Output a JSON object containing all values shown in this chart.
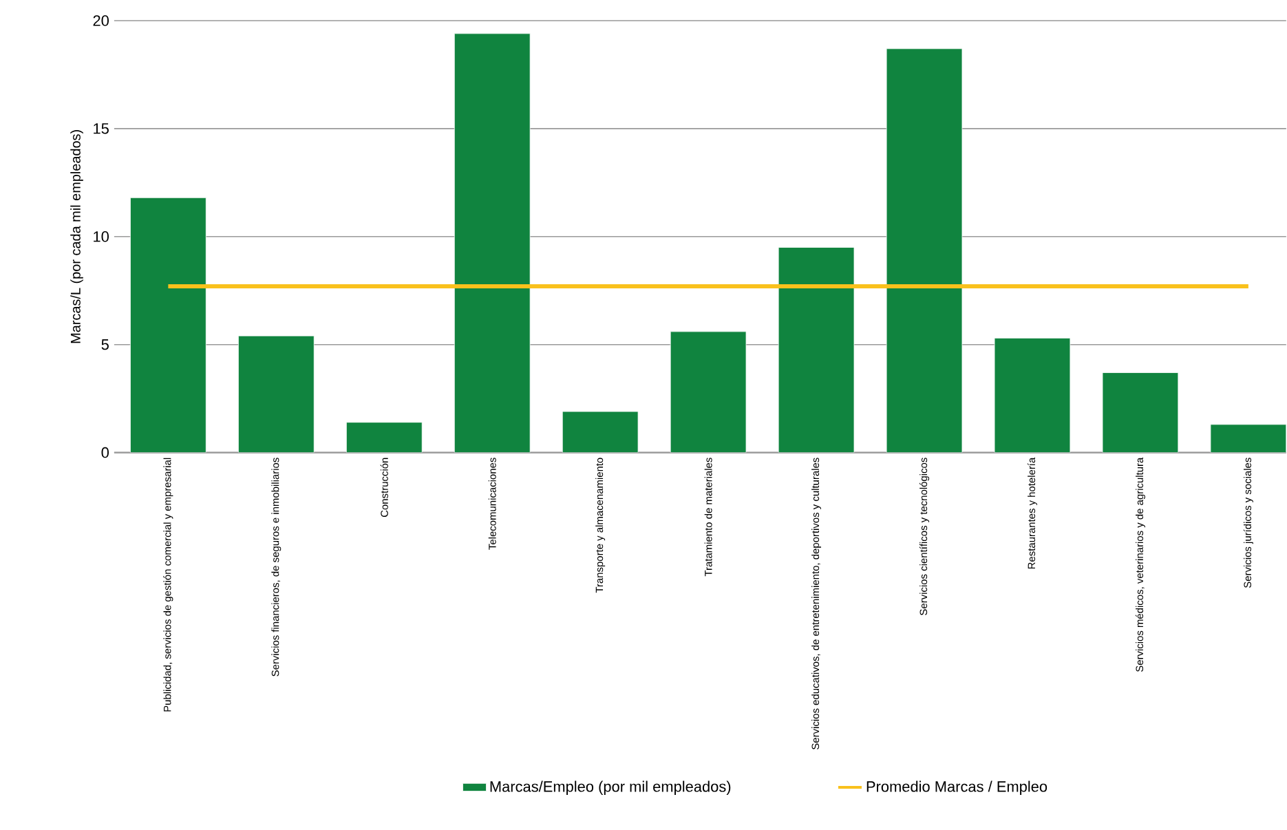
{
  "chart_data": {
    "type": "bar",
    "ylabel": "Marcas/L (por cada mil empleados)",
    "categories": [
      "Publicidad, servicios de gestión comercial y empresarial",
      "Servicios financieros, de seguros e inmobiliarios",
      "Construcción",
      "Telecomunicaciones",
      "Transporte y almacenamiento",
      "Tratamiento de materiales",
      "Servicios educativos, de entretenimiento, deportivos y culturales",
      "Servicios científicos y tecnológicos",
      "Restaurantes y hotelería",
      "Servicios médicos, veterinarios y de agricultura",
      "Servicios jurídicos y sociales"
    ],
    "series": [
      {
        "name": "Marcas/Empleo (por mil empleados)",
        "color": "#10843f",
        "values": [
          11.8,
          5.4,
          1.4,
          19.4,
          1.9,
          5.6,
          9.5,
          18.7,
          5.3,
          3.7,
          1.3
        ]
      },
      {
        "name": "Promedio Marcas / Empleo",
        "type": "line",
        "color": "#f9c11c",
        "values": [
          7.7,
          7.7,
          7.7,
          7.7,
          7.7,
          7.7,
          7.7,
          7.7,
          7.7,
          7.7,
          7.7
        ]
      }
    ],
    "ylim": [
      0,
      20
    ],
    "yticks": [
      0,
      5,
      10,
      15,
      20
    ],
    "grid": "y",
    "legend": "bottom",
    "marker": "none"
  }
}
